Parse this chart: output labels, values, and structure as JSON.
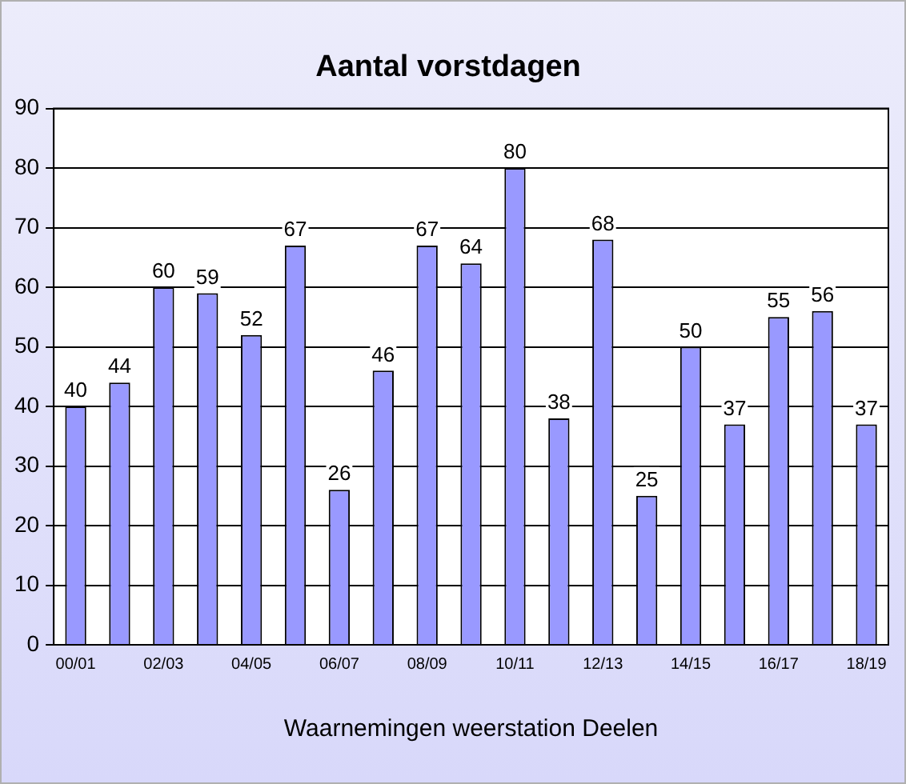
{
  "chart_data": {
    "type": "bar",
    "title": "Aantal vorstdagen",
    "xlabel": "Waarnemingen weerstation Deelen",
    "categories": [
      "00/01",
      null,
      "02/03",
      null,
      "04/05",
      null,
      "06/07",
      null,
      "08/09",
      null,
      "10/11",
      null,
      "12/13",
      null,
      "14/15",
      null,
      "16/17",
      null,
      "18/19"
    ],
    "values": [
      40,
      44,
      60,
      59,
      52,
      67,
      26,
      46,
      67,
      64,
      80,
      38,
      68,
      25,
      50,
      37,
      55,
      56,
      37
    ],
    "color": "#9999ff",
    "ylim": [
      0,
      90
    ],
    "yticks": [
      0,
      10,
      20,
      30,
      40,
      50,
      60,
      70,
      80,
      90
    ],
    "grid": "y",
    "data_labels": true,
    "legend": false
  }
}
